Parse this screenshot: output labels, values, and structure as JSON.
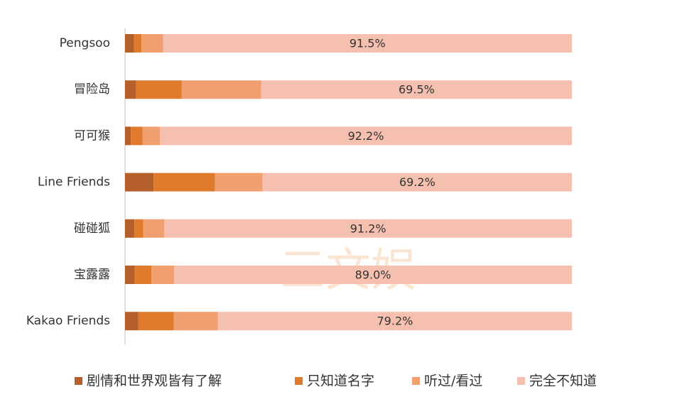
{
  "chart_data": {
    "type": "stacked-barh",
    "categories": [
      "Pengsoo",
      "冒险岛",
      "可可猴",
      "Line Friends",
      "碰碰狐",
      "宝露露",
      "Kakao Friends"
    ],
    "series": [
      {
        "name": "剧情和世界观皆有了解",
        "color": "#b5602a",
        "values": [
          2.0,
          2.5,
          1.3,
          6.4,
          2.1,
          2.2,
          3.0
        ]
      },
      {
        "name": "只知道名字",
        "color": "#e07b2e",
        "values": [
          1.7,
          10.2,
          2.6,
          13.7,
          2.0,
          3.7,
          7.9
        ]
      },
      {
        "name": "听过/看过",
        "color": "#f0a070",
        "values": [
          4.8,
          17.8,
          3.9,
          10.7,
          4.7,
          5.1,
          9.9
        ]
      },
      {
        "name": "完全不知道",
        "color": "#f5c0b0",
        "values": [
          91.5,
          69.5,
          92.2,
          69.2,
          91.2,
          89.0,
          79.2
        ],
        "value_labels": [
          "91.5%",
          "69.5%",
          "92.2%",
          "69.2%",
          "91.2%",
          "89.0%",
          "79.2%"
        ]
      }
    ],
    "xlim": [
      0,
      100
    ],
    "watermark": "三文娱"
  }
}
